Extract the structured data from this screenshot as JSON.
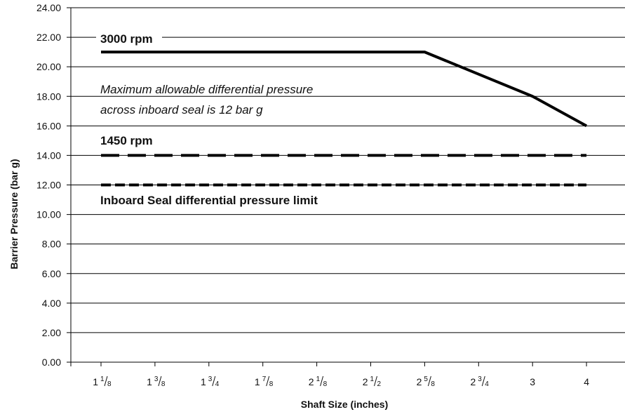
{
  "chart_data": {
    "type": "line",
    "title": "",
    "xlabel": "Shaft Size (inches)",
    "ylabel": "Barrier Pressure (bar g)",
    "ylim": [
      0,
      24
    ],
    "y_ticks": [
      "0.00",
      "2.00",
      "4.00",
      "6.00",
      "8.00",
      "10.00",
      "12.00",
      "14.00",
      "16.00",
      "18.00",
      "20.00",
      "22.00",
      "24.00"
    ],
    "grid": true,
    "categories": [
      {
        "whole": "1",
        "num": "1",
        "den": "8"
      },
      {
        "whole": "1",
        "num": "3",
        "den": "8"
      },
      {
        "whole": "1",
        "num": "3",
        "den": "4"
      },
      {
        "whole": "1",
        "num": "7",
        "den": "8"
      },
      {
        "whole": "2",
        "num": "1",
        "den": "8"
      },
      {
        "whole": "2",
        "num": "1",
        "den": "2"
      },
      {
        "whole": "2",
        "num": "5",
        "den": "8"
      },
      {
        "whole": "2",
        "num": "3",
        "den": "4"
      },
      {
        "whole": "3",
        "num": "",
        "den": ""
      },
      {
        "whole": "4",
        "num": "",
        "den": ""
      }
    ],
    "series": [
      {
        "name": "3000 rpm",
        "style": "solid",
        "values": [
          21,
          21,
          21,
          21,
          21,
          21,
          21,
          19.5,
          18,
          16
        ]
      },
      {
        "name": "1450 rpm",
        "style": "long-dash",
        "values": [
          14,
          14,
          14,
          14,
          14,
          14,
          14,
          14,
          14,
          14
        ]
      },
      {
        "name": "Inboard Seal differential pressure limit",
        "style": "short-dash",
        "values": [
          12,
          12,
          12,
          12,
          12,
          12,
          12,
          12,
          12,
          12
        ]
      }
    ],
    "annotations": [
      "Maximum allowable differential pressure",
      "across inboard seal is 12 bar g"
    ]
  }
}
